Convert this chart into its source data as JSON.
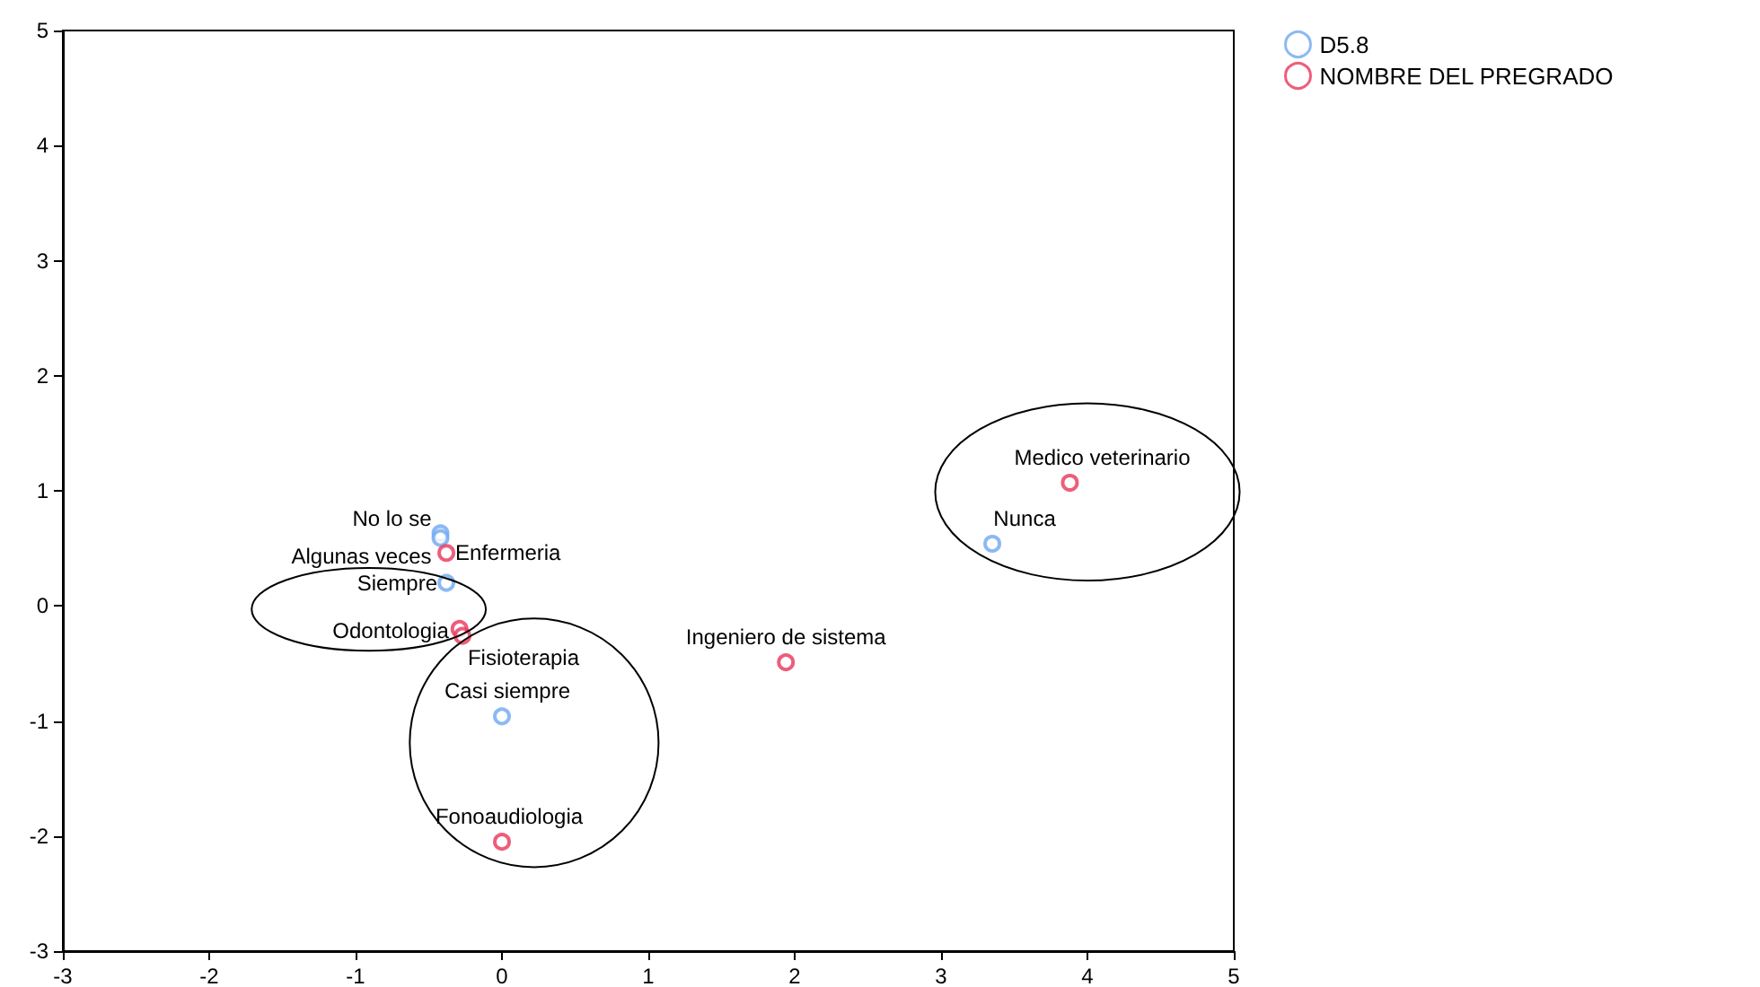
{
  "chart_data": {
    "type": "scatter",
    "xlim": [
      -3,
      5
    ],
    "ylim": [
      -3,
      5
    ],
    "xticks": [
      -3,
      -2,
      -1,
      0,
      1,
      2,
      3,
      4,
      5
    ],
    "yticks": [
      -3,
      -2,
      -1,
      0,
      1,
      2,
      3,
      4,
      5
    ],
    "grid": false,
    "legend": "top right",
    "marker": "circle",
    "series": [
      {
        "name": "D5.8",
        "color": "#6fa8f0",
        "x": [
          -0.42,
          -0.42,
          -0.38,
          0.0,
          3.35
        ],
        "values": [
          0.63,
          0.59,
          0.2,
          -0.96,
          0.54
        ]
      },
      {
        "name": "NOMBRE DEL PREGRADO",
        "color": "#e8365a",
        "x": [
          -0.38,
          -0.29,
          -0.27,
          0.0,
          1.94,
          3.88
        ],
        "values": [
          0.46,
          -0.2,
          -0.26,
          -2.05,
          -0.49,
          1.07
        ]
      }
    ],
    "annotations": [
      {
        "text": "No lo se",
        "x": -0.42,
        "y": 0.63
      },
      {
        "text": "Algunas veces",
        "x": -0.42,
        "y": 0.59
      },
      {
        "text": "Siempre",
        "x": -0.38,
        "y": 0.2
      },
      {
        "text": "Casi siempre",
        "x": 0.0,
        "y": -0.96
      },
      {
        "text": "Nunca",
        "x": 3.35,
        "y": 0.54
      },
      {
        "text": "Enfermeria",
        "x": -0.38,
        "y": 0.46
      },
      {
        "text": "Odontologia",
        "x": -0.29,
        "y": -0.2
      },
      {
        "text": "Fisioterapia",
        "x": -0.27,
        "y": -0.26
      },
      {
        "text": "Fonoaudiologia",
        "x": 0.0,
        "y": -2.05
      },
      {
        "text": "Ingeniero de sistema",
        "x": 1.94,
        "y": -0.49
      },
      {
        "text": "Medico veterinario",
        "x": 3.88,
        "y": 1.07
      }
    ]
  }
}
